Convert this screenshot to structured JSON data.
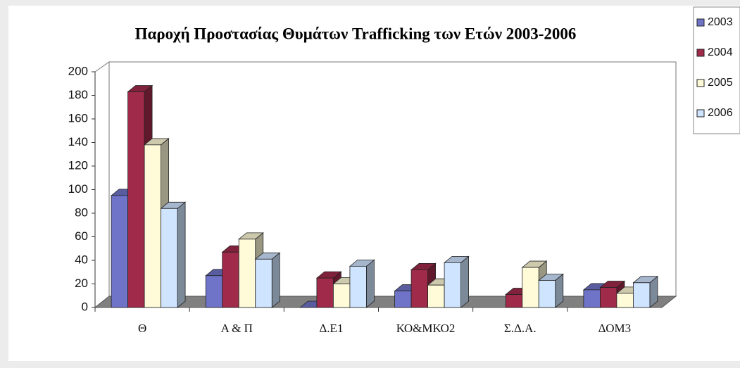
{
  "chart_data": {
    "type": "bar3d",
    "title": "Παροχή Προστασίας Θυμάτων Trafficking των Ετών 2003-2006",
    "categories": [
      "Θ",
      "Α & Π",
      "Δ.Ε1",
      "ΚΟ&ΜΚΟ2",
      "Σ.Δ.Α.",
      "ΔΟΜ3"
    ],
    "series": [
      {
        "name": "2003",
        "color": "#6f74c8",
        "values": [
          95,
          27,
          0,
          14,
          null,
          15
        ]
      },
      {
        "name": "2004",
        "color": "#a02a4a",
        "values": [
          183,
          47,
          25,
          32,
          11,
          17
        ]
      },
      {
        "name": "2005",
        "color": "#fffbd8",
        "values": [
          138,
          58,
          20,
          19,
          34,
          12
        ]
      },
      {
        "name": "2006",
        "color": "#cfe4ff",
        "values": [
          84,
          41,
          35,
          38,
          23,
          21
        ]
      }
    ],
    "ylim": [
      0,
      200
    ],
    "yticks": [
      0,
      20,
      40,
      60,
      80,
      100,
      120,
      140,
      160,
      180,
      200
    ],
    "grid": false,
    "legend": "right"
  }
}
